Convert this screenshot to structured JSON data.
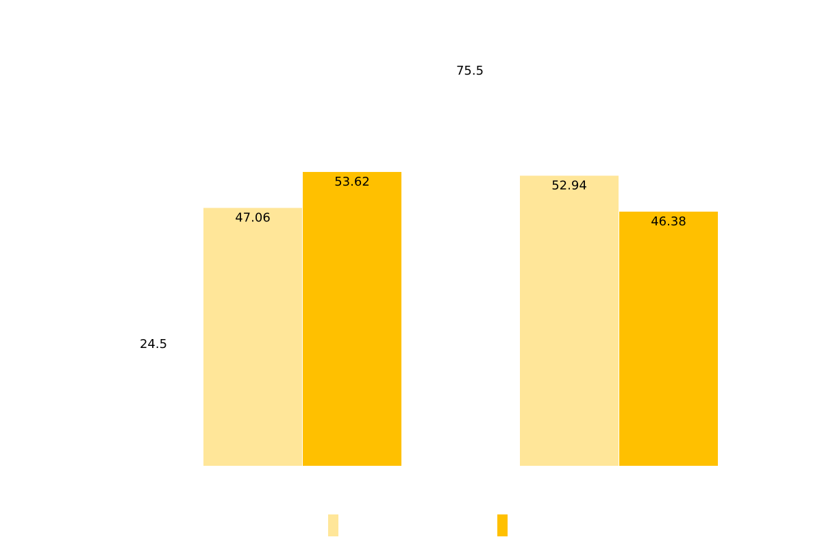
{
  "chart_data": {
    "type": "bar",
    "categories": [
      "",
      ""
    ],
    "series": [
      {
        "color": "#FFE699",
        "values": [
          47.06,
          52.94
        ]
      },
      {
        "color": "#FFC000",
        "values": [
          53.62,
          46.38
        ]
      }
    ],
    "ylim": [
      0,
      85
    ],
    "grid": false,
    "legend": "bottom",
    "annotations": [
      "24.5",
      "75.5"
    ],
    "title": "",
    "xlabel": "",
    "ylabel": ""
  }
}
